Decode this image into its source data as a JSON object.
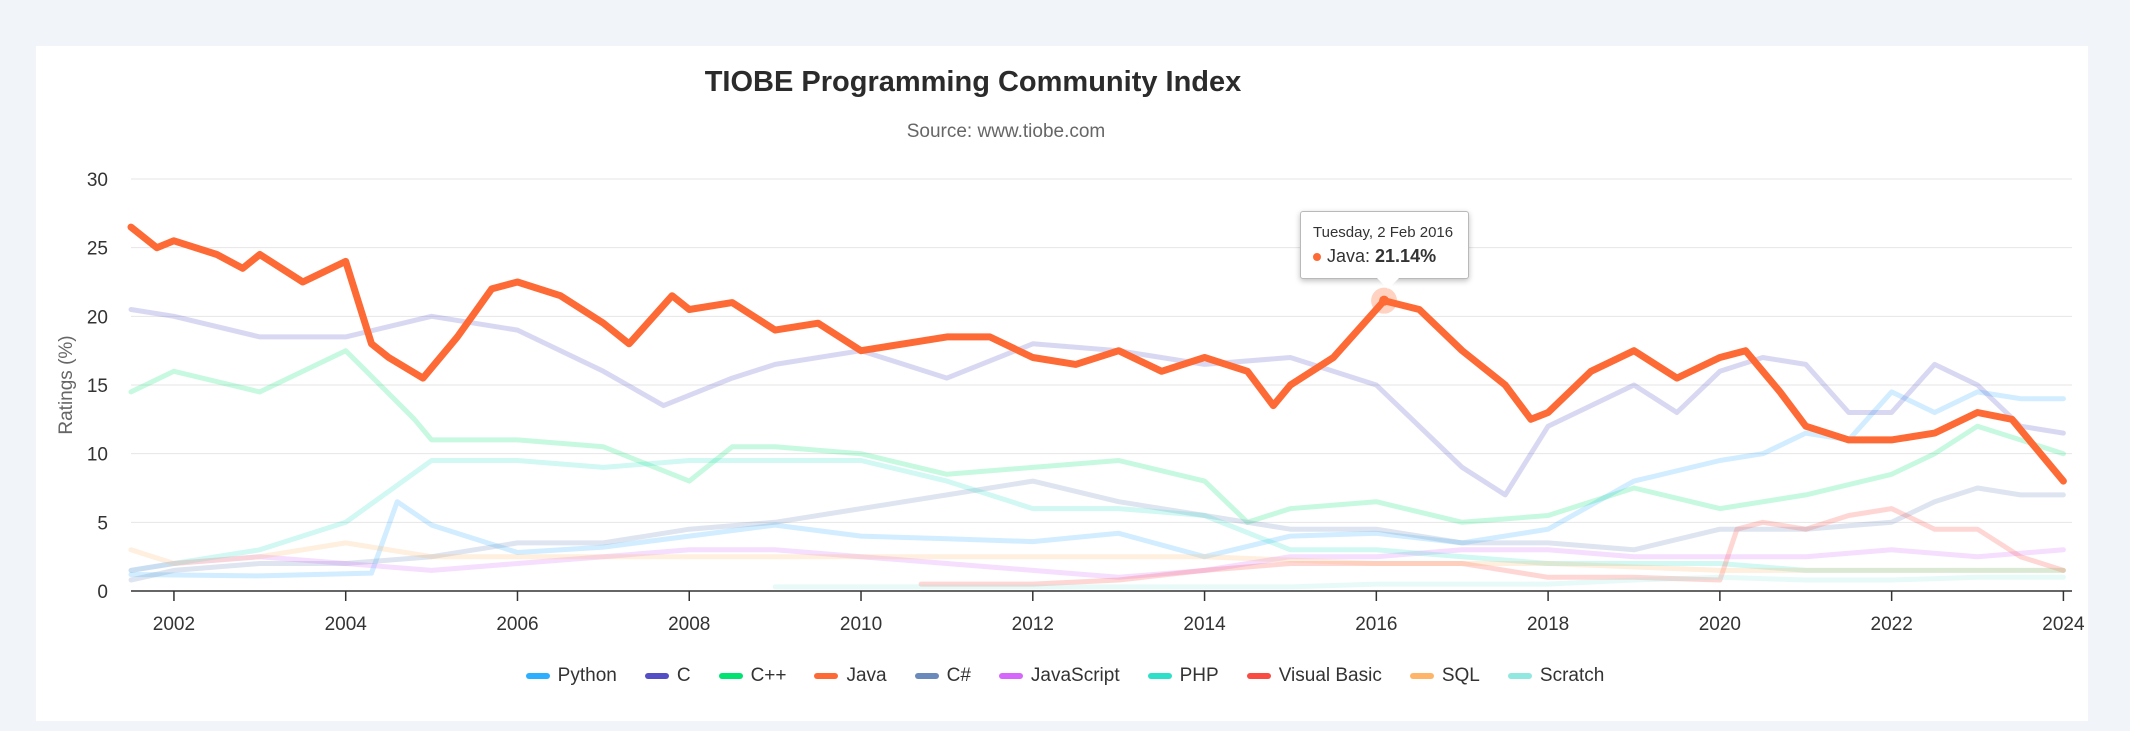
{
  "chart_data": {
    "type": "line",
    "title": "TIOBE Programming Community Index",
    "subtitle": "Source: www.tiobe.com",
    "ylabel": "Ratings (%)",
    "xlabel": "",
    "xlim": [
      2001.5,
      2024.1
    ],
    "ylim": [
      0,
      30
    ],
    "grid": true,
    "legend_position": "bottom-center",
    "x_ticks": [
      2002,
      2004,
      2006,
      2008,
      2010,
      2012,
      2014,
      2016,
      2018,
      2020,
      2022,
      2024
    ],
    "x_tick_labels": [
      "2002",
      "2004",
      "2006",
      "2008",
      "2010",
      "2012",
      "2014",
      "2016",
      "2018",
      "2020",
      "2022",
      "2024"
    ],
    "y_ticks": [
      0,
      5,
      10,
      15,
      20,
      25,
      30
    ],
    "y_tick_labels": [
      "0",
      "5",
      "10",
      "15",
      "20",
      "25",
      "30"
    ],
    "highlighted_series": "Java",
    "tooltip": {
      "date": "Tuesday, 2 Feb 2016",
      "series": "Java",
      "label": "Java: ",
      "value_text": "21.14%",
      "x": 2016.09,
      "y": 21.14
    },
    "series": [
      {
        "name": "Python",
        "color": "#2caffe",
        "x": [
          2001.5,
          2003,
          2004.3,
          2004.6,
          2005,
          2006,
          2007,
          2008,
          2009,
          2010,
          2011,
          2012,
          2013,
          2014,
          2015,
          2016,
          2017,
          2018,
          2019,
          2020,
          2020.5,
          2021,
          2021.5,
          2022,
          2022.5,
          2023,
          2023.5,
          2024
        ],
        "y": [
          1.2,
          1.1,
          1.3,
          6.5,
          4.8,
          2.8,
          3.2,
          4.0,
          4.8,
          4.0,
          3.8,
          3.6,
          4.2,
          2.5,
          4.0,
          4.2,
          3.5,
          4.5,
          8.0,
          9.5,
          10.0,
          11.5,
          11.0,
          14.5,
          13.0,
          14.5,
          14.0,
          14.0
        ]
      },
      {
        "name": "C",
        "color": "#544fc5",
        "x": [
          2001.5,
          2002,
          2003,
          2004,
          2005,
          2006,
          2007,
          2007.7,
          2008.5,
          2009,
          2010,
          2011,
          2012,
          2013,
          2014,
          2015,
          2016,
          2017,
          2017.5,
          2018,
          2019,
          2019.5,
          2020,
          2020.5,
          2021,
          2021.5,
          2022,
          2022.5,
          2023,
          2023.5,
          2024
        ],
        "y": [
          20.5,
          20.0,
          18.5,
          18.5,
          20.0,
          19.0,
          16.0,
          13.5,
          15.5,
          16.5,
          17.5,
          15.5,
          18.0,
          17.5,
          16.5,
          17.0,
          15.0,
          9.0,
          7.0,
          12.0,
          15.0,
          13.0,
          16.0,
          17.0,
          16.5,
          13.0,
          13.0,
          16.5,
          15.0,
          12.0,
          11.5
        ]
      },
      {
        "name": "C++",
        "color": "#00e272",
        "x": [
          2001.5,
          2002,
          2003,
          2004,
          2004.4,
          2004.8,
          2005,
          2006,
          2007,
          2008,
          2008.5,
          2009,
          2010,
          2011,
          2012,
          2013,
          2014,
          2014.5,
          2015,
          2016,
          2017,
          2018,
          2019,
          2020,
          2021,
          2022,
          2022.5,
          2023,
          2023.5,
          2024
        ],
        "y": [
          14.5,
          16.0,
          14.5,
          17.5,
          15.0,
          12.5,
          11.0,
          11.0,
          10.5,
          8.0,
          10.5,
          10.5,
          10.0,
          8.5,
          9.0,
          9.5,
          8.0,
          5.0,
          6.0,
          6.5,
          5.0,
          5.5,
          7.5,
          6.0,
          7.0,
          8.5,
          10.0,
          12.0,
          11.0,
          10.0
        ]
      },
      {
        "name": "Java",
        "color": "#fe6a35",
        "x": [
          2001.5,
          2001.8,
          2002,
          2002.5,
          2002.8,
          2003,
          2003.5,
          2004,
          2004.3,
          2004.5,
          2004.9,
          2005.3,
          2005.7,
          2006,
          2006.5,
          2007,
          2007.3,
          2007.8,
          2008,
          2008.5,
          2009,
          2009.5,
          2010,
          2010.5,
          2011,
          2011.5,
          2012,
          2012.5,
          2013,
          2013.5,
          2014,
          2014.5,
          2014.8,
          2015,
          2015.5,
          2016.09,
          2016.5,
          2017,
          2017.5,
          2017.8,
          2018,
          2018.5,
          2019,
          2019.5,
          2020,
          2020.3,
          2020.7,
          2021,
          2021.5,
          2022,
          2022.5,
          2023,
          2023.4,
          2023.8,
          2024
        ],
        "y": [
          26.5,
          25.0,
          25.5,
          24.5,
          23.5,
          24.5,
          22.5,
          24.0,
          18.0,
          17.0,
          15.5,
          18.5,
          22.0,
          22.5,
          21.5,
          19.5,
          18.0,
          21.5,
          20.5,
          21.0,
          19.0,
          19.5,
          17.5,
          18.0,
          18.5,
          18.5,
          17.0,
          16.5,
          17.5,
          16.0,
          17.0,
          16.0,
          13.5,
          15.0,
          17.0,
          21.14,
          20.5,
          17.5,
          15.0,
          12.5,
          13.0,
          16.0,
          17.5,
          15.5,
          17.0,
          17.5,
          14.5,
          12.0,
          11.0,
          11.0,
          11.5,
          13.0,
          12.5,
          9.5,
          8.0
        ]
      },
      {
        "name": "C#",
        "color": "#6b8abc",
        "x": [
          2001.5,
          2002,
          2003,
          2004,
          2005,
          2006,
          2007,
          2008,
          2009,
          2010,
          2011,
          2012,
          2013,
          2014,
          2015,
          2016,
          2017,
          2018,
          2019,
          2020,
          2021,
          2022,
          2022.5,
          2023,
          2023.5,
          2024
        ],
        "y": [
          0.8,
          1.5,
          2.0,
          2.0,
          2.5,
          3.5,
          3.5,
          4.5,
          5.0,
          6.0,
          7.0,
          8.0,
          6.5,
          5.5,
          4.5,
          4.5,
          3.5,
          3.5,
          3.0,
          4.5,
          4.5,
          5.0,
          6.5,
          7.5,
          7.0,
          7.0
        ]
      },
      {
        "name": "JavaScript",
        "color": "#d568fb",
        "x": [
          2001.5,
          2002,
          2003,
          2004,
          2005,
          2006,
          2007,
          2008,
          2009,
          2010,
          2011,
          2012,
          2013,
          2014,
          2015,
          2016,
          2017,
          2018,
          2019,
          2020,
          2021,
          2022,
          2023,
          2024
        ],
        "y": [
          1.5,
          2.0,
          2.5,
          2.0,
          1.5,
          2.0,
          2.5,
          3.0,
          3.0,
          2.5,
          2.0,
          1.5,
          1.0,
          1.5,
          2.5,
          2.5,
          3.0,
          3.0,
          2.5,
          2.5,
          2.5,
          3.0,
          2.5,
          3.0
        ]
      },
      {
        "name": "PHP",
        "color": "#2ee0ca",
        "x": [
          2001.5,
          2002,
          2003,
          2004,
          2005,
          2006,
          2007,
          2008,
          2009,
          2010,
          2011,
          2012,
          2013,
          2014,
          2015,
          2016,
          2017,
          2018,
          2019,
          2020,
          2021,
          2022,
          2023,
          2024
        ],
        "y": [
          1.5,
          2.0,
          3.0,
          5.0,
          9.5,
          9.5,
          9.0,
          9.5,
          9.5,
          9.5,
          8.0,
          6.0,
          6.0,
          5.5,
          3.0,
          3.0,
          2.5,
          2.0,
          2.0,
          2.0,
          1.5,
          1.5,
          1.5,
          1.5
        ]
      },
      {
        "name": "Visual Basic",
        "color": "#fa4b42",
        "x": [
          2010.7,
          2011,
          2012,
          2013,
          2014,
          2015,
          2016,
          2017,
          2018,
          2019,
          2020,
          2020.2,
          2020.5,
          2021,
          2021.5,
          2022,
          2022.5,
          2023,
          2023.5,
          2024
        ],
        "y": [
          0.5,
          0.5,
          0.5,
          0.8,
          1.5,
          2.0,
          2.0,
          2.0,
          1.0,
          1.0,
          0.8,
          4.5,
          5.0,
          4.5,
          5.5,
          6.0,
          4.5,
          4.5,
          2.5,
          1.5
        ]
      },
      {
        "name": "SQL",
        "color": "#feb56a",
        "x": [
          2001.5,
          2002,
          2003,
          2004,
          2005,
          2006,
          2008,
          2010,
          2012,
          2014,
          2016,
          2018,
          2020,
          2022,
          2024
        ],
        "y": [
          3.0,
          2.0,
          2.5,
          3.5,
          2.5,
          2.5,
          2.5,
          2.5,
          2.5,
          2.5,
          2.0,
          2.0,
          1.5,
          1.5,
          1.5
        ]
      },
      {
        "name": "Scratch",
        "color": "#91e8e1",
        "x": [
          2009,
          2010,
          2011,
          2012,
          2013,
          2014,
          2015,
          2016,
          2017,
          2018,
          2019,
          2020,
          2021,
          2022,
          2023,
          2024
        ],
        "y": [
          0.3,
          0.3,
          0.3,
          0.3,
          0.3,
          0.3,
          0.3,
          0.5,
          0.5,
          0.5,
          0.8,
          1.0,
          0.8,
          0.8,
          1.0,
          1.0
        ]
      }
    ]
  },
  "legend": {
    "items": [
      {
        "label": "Python",
        "color": "#2caffe"
      },
      {
        "label": "C",
        "color": "#544fc5"
      },
      {
        "label": "C++",
        "color": "#00e272"
      },
      {
        "label": "Java",
        "color": "#fe6a35"
      },
      {
        "label": "C#",
        "color": "#6b8abc"
      },
      {
        "label": "JavaScript",
        "color": "#d568fb"
      },
      {
        "label": "PHP",
        "color": "#2ee0ca"
      },
      {
        "label": "Visual Basic",
        "color": "#fa4b42"
      },
      {
        "label": "SQL",
        "color": "#feb56a"
      },
      {
        "label": "Scratch",
        "color": "#91e8e1"
      }
    ]
  }
}
